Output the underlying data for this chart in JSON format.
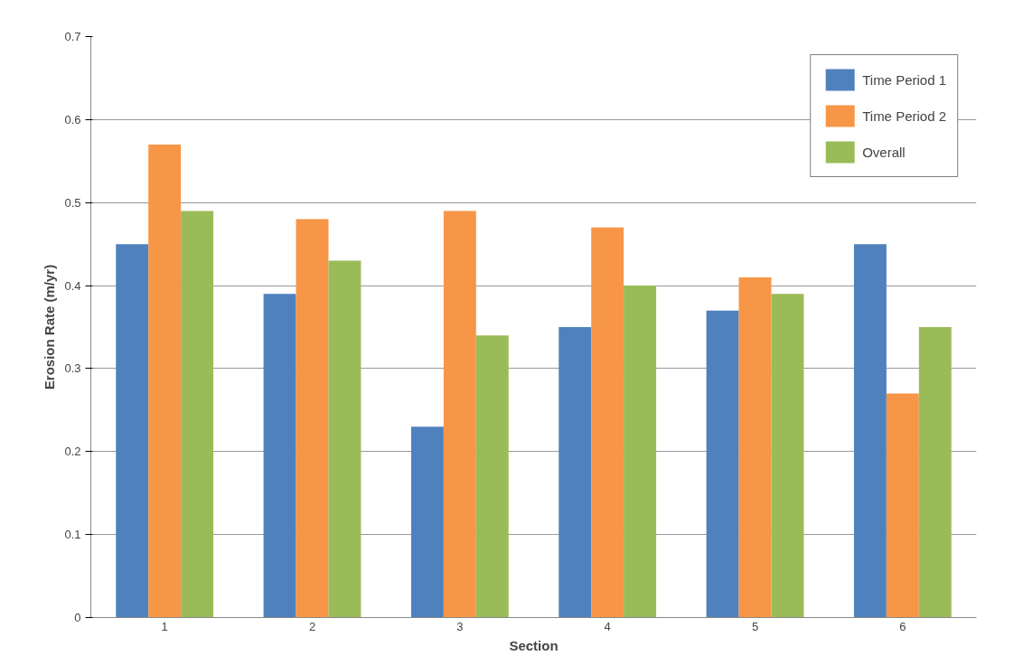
{
  "chart_data": {
    "type": "bar",
    "xlabel": "Section",
    "ylabel": "Erosion Rate (m/yr)",
    "categories": [
      "1",
      "2",
      "3",
      "4",
      "5",
      "6"
    ],
    "series": [
      {
        "name": "Time Period 1",
        "color": "#4f81bd",
        "values": [
          0.45,
          0.39,
          0.23,
          0.35,
          0.37,
          0.45
        ]
      },
      {
        "name": "Time Period 2",
        "color": "#f79646",
        "values": [
          0.57,
          0.48,
          0.49,
          0.47,
          0.41,
          0.27
        ]
      },
      {
        "name": "Overall",
        "color": "#9bbb59",
        "values": [
          0.49,
          0.43,
          0.34,
          0.4,
          0.39,
          0.35
        ]
      }
    ],
    "ylim": [
      0,
      0.7
    ],
    "yticks": [
      0,
      0.1,
      0.2,
      0.3,
      0.4,
      0.5,
      0.6,
      0.7
    ],
    "grid": "y",
    "legend": "top right"
  }
}
